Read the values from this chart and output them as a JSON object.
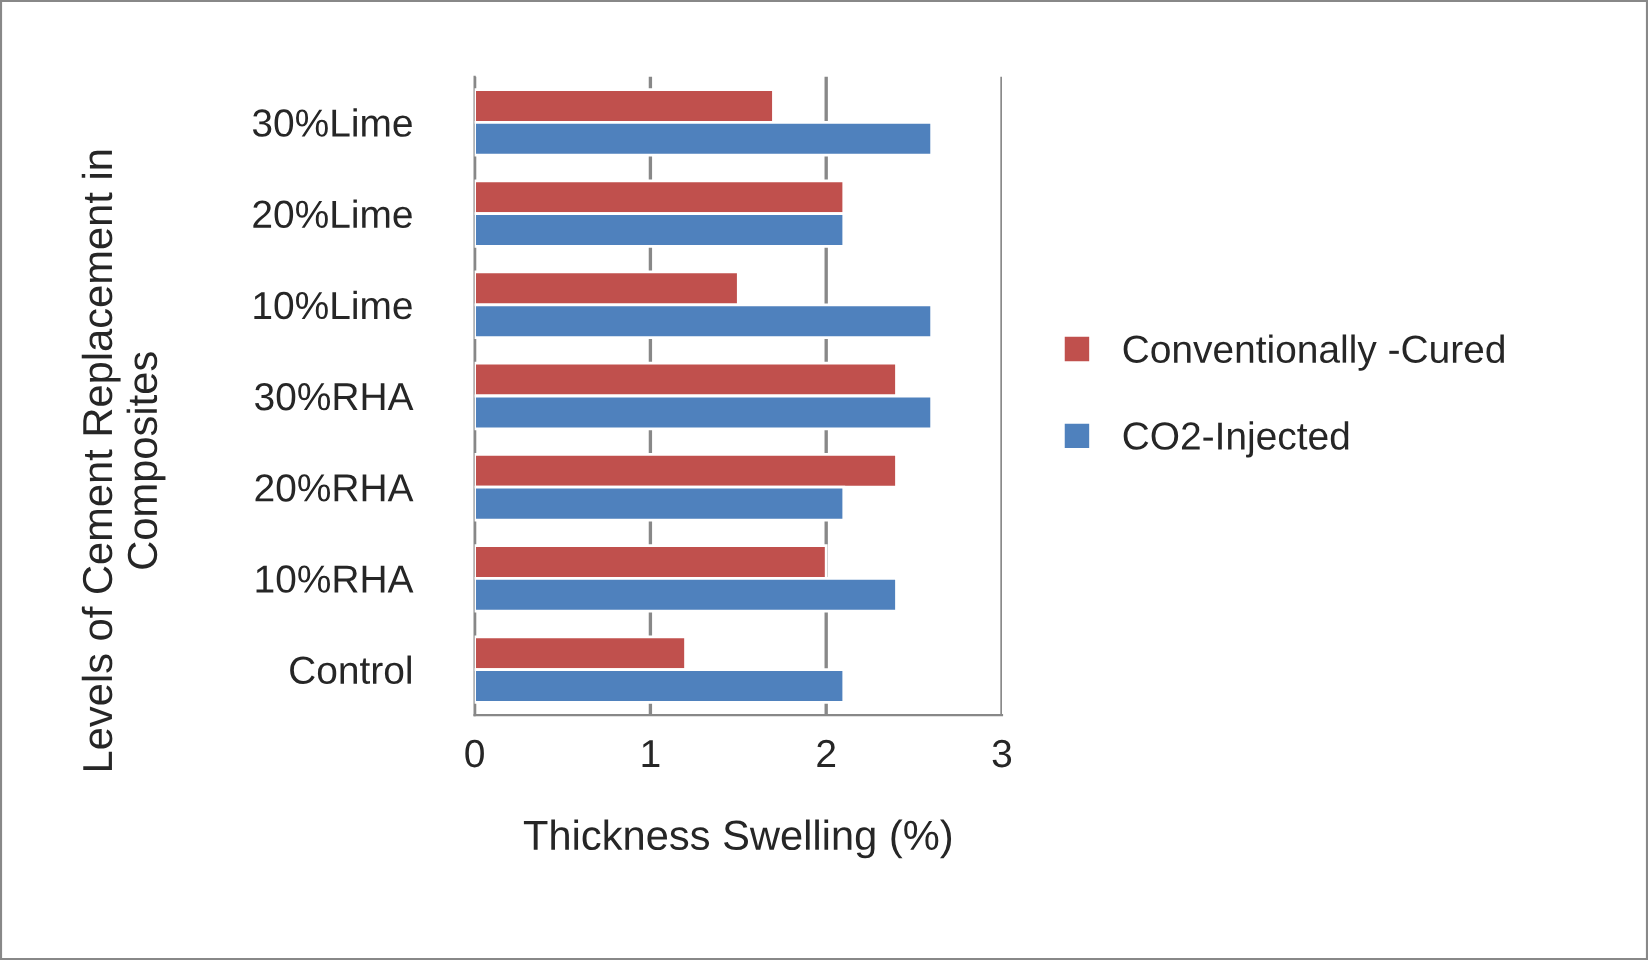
{
  "chart_data": {
    "type": "bar",
    "orientation": "horizontal",
    "xlabel": "Thickness Swelling (%)",
    "ylabel": "Levels of Cement Replacement in Composites",
    "categories": [
      "30%Lime",
      "20%Lime",
      "10%Lime",
      "30%RHA",
      "20%RHA",
      "10%RHA",
      "Control"
    ],
    "series": [
      {
        "name": "Conventionally -Cured",
        "color": "#c0504d",
        "values": [
          1.7,
          2.1,
          1.5,
          2.4,
          2.4,
          2.0,
          1.2
        ]
      },
      {
        "name": "CO2-Injected",
        "color": "#4f81bd",
        "values": [
          2.6,
          2.1,
          2.6,
          2.6,
          2.1,
          2.4,
          2.1
        ]
      }
    ],
    "xlim": [
      0,
      3
    ],
    "xticks": [
      0,
      1,
      2,
      3
    ],
    "grid": "x",
    "legend": "right"
  }
}
